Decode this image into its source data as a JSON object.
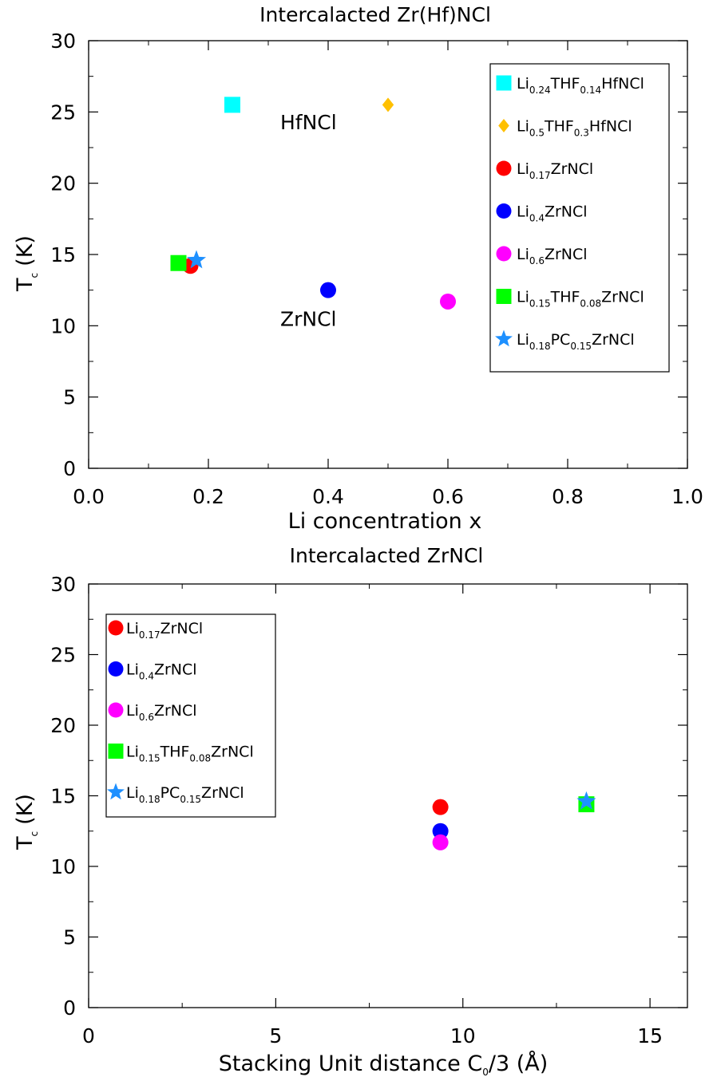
{
  "chart_data": [
    {
      "type": "scatter",
      "title": "Intercalacted Zr(Hf)NCl",
      "xlabel": "Li concentration x",
      "ylabel": {
        "main": "T",
        "sub": "c",
        "unit": "(K)"
      },
      "xlim": [
        0,
        1.0
      ],
      "ylim": [
        0,
        30
      ],
      "xticks": [
        0,
        0.2,
        0.4,
        0.6,
        0.8,
        1.0
      ],
      "xtick_labels": [
        "0.0",
        "0.2",
        "0.4",
        "0.6",
        "0.8",
        "1.0"
      ],
      "yticks": [
        0,
        5,
        10,
        15,
        20,
        25,
        30
      ],
      "ytick_labels": [
        "0",
        "5",
        "10",
        "15",
        "20",
        "25",
        "30"
      ],
      "grid": false,
      "legend_position": "top-right",
      "annotations": [
        {
          "text": "HfNCl",
          "x": 0.32,
          "y": 23.8
        },
        {
          "text": "ZrNCl",
          "x": 0.32,
          "y": 10.0
        }
      ],
      "series": [
        {
          "name": "Li0.24THF0.14HfNCl",
          "label_parts": [
            [
              "Li",
              ""
            ],
            [
              "0.24",
              "sub"
            ],
            [
              "THF",
              ""
            ],
            [
              "0.14",
              "sub"
            ],
            [
              "HfNCl",
              ""
            ]
          ],
          "marker": "square",
          "color": "#00ffff",
          "x": [
            0.24
          ],
          "y": [
            25.5
          ]
        },
        {
          "name": "Li0.5THF0.3HfNCl",
          "label_parts": [
            [
              "Li",
              ""
            ],
            [
              "0.5",
              "sub"
            ],
            [
              "THF",
              ""
            ],
            [
              "0.3",
              "sub"
            ],
            [
              "HfNCl",
              ""
            ]
          ],
          "marker": "diamond",
          "color": "#ffc000",
          "x": [
            0.5
          ],
          "y": [
            25.5
          ]
        },
        {
          "name": "Li0.17ZrNCl",
          "label_parts": [
            [
              "Li",
              ""
            ],
            [
              "0.17",
              "sub"
            ],
            [
              "ZrNCl",
              ""
            ]
          ],
          "marker": "circle",
          "color": "#ff0000",
          "x": [
            0.17
          ],
          "y": [
            14.2
          ]
        },
        {
          "name": "Li0.4ZrNCl",
          "label_parts": [
            [
              "Li",
              ""
            ],
            [
              "0.4",
              "sub"
            ],
            [
              "ZrNCl",
              ""
            ]
          ],
          "marker": "circle",
          "color": "#0000ff",
          "x": [
            0.4
          ],
          "y": [
            12.5
          ]
        },
        {
          "name": "Li0.6ZrNCl",
          "label_parts": [
            [
              "Li",
              ""
            ],
            [
              "0.6",
              "sub"
            ],
            [
              "ZrNCl",
              ""
            ]
          ],
          "marker": "circle",
          "color": "#ff00ff",
          "x": [
            0.6
          ],
          "y": [
            11.7
          ]
        },
        {
          "name": "Li0.15THF0.08ZrNCl",
          "label_parts": [
            [
              "Li",
              ""
            ],
            [
              "0.15",
              "sub"
            ],
            [
              "THF",
              ""
            ],
            [
              "0.08",
              "sub"
            ],
            [
              "ZrNCl",
              ""
            ]
          ],
          "marker": "square",
          "color": "#00ff00",
          "x": [
            0.15
          ],
          "y": [
            14.4
          ]
        },
        {
          "name": "Li0.18PC0.15ZrNCl",
          "label_parts": [
            [
              "Li",
              ""
            ],
            [
              "0.18",
              "sub"
            ],
            [
              "PC",
              ""
            ],
            [
              "0.15",
              "sub"
            ],
            [
              "ZrNCl",
              ""
            ]
          ],
          "marker": "star",
          "color": "#1e90ff",
          "x": [
            0.18
          ],
          "y": [
            14.6
          ]
        }
      ]
    },
    {
      "type": "scatter",
      "title": "Intercalacted ZrNCl",
      "xlabel": "Stacking Unit distance C0/3 (Å)",
      "xlabel_parts": [
        [
          "Stacking Unit distance C",
          ""
        ],
        [
          "0",
          "sub"
        ],
        [
          "/3 (Å)",
          ""
        ]
      ],
      "ylabel": {
        "main": "T",
        "sub": "c",
        "unit": "(K)"
      },
      "xlim": [
        0,
        16
      ],
      "ylim": [
        0,
        30
      ],
      "xticks": [
        0,
        5,
        10,
        15
      ],
      "xtick_labels": [
        "0",
        "5",
        "10",
        "15"
      ],
      "yticks": [
        0,
        5,
        10,
        15,
        20,
        25,
        30
      ],
      "ytick_labels": [
        "0",
        "5",
        "10",
        "15",
        "20",
        "25",
        "30"
      ],
      "grid": false,
      "legend_position": "top-left",
      "annotations": [],
      "series": [
        {
          "name": "Li0.17ZrNCl",
          "label_parts": [
            [
              "Li",
              ""
            ],
            [
              "0.17",
              "sub"
            ],
            [
              "ZrNCl",
              ""
            ]
          ],
          "marker": "circle",
          "color": "#ff0000",
          "x": [
            9.4
          ],
          "y": [
            14.2
          ]
        },
        {
          "name": "Li0.4ZrNCl",
          "label_parts": [
            [
              "Li",
              ""
            ],
            [
              "0.4",
              "sub"
            ],
            [
              "ZrNCl",
              ""
            ]
          ],
          "marker": "circle",
          "color": "#0000ff",
          "x": [
            9.4
          ],
          "y": [
            12.5
          ]
        },
        {
          "name": "Li0.6ZrNCl",
          "label_parts": [
            [
              "Li",
              ""
            ],
            [
              "0.6",
              "sub"
            ],
            [
              "ZrNCl",
              ""
            ]
          ],
          "marker": "circle",
          "color": "#ff00ff",
          "x": [
            9.4
          ],
          "y": [
            11.7
          ]
        },
        {
          "name": "Li0.15THF0.08ZrNCl",
          "label_parts": [
            [
              "Li",
              ""
            ],
            [
              "0.15",
              "sub"
            ],
            [
              "THF",
              ""
            ],
            [
              "0.08",
              "sub"
            ],
            [
              "ZrNCl",
              ""
            ]
          ],
          "marker": "square",
          "color": "#00ff00",
          "x": [
            13.3
          ],
          "y": [
            14.4
          ]
        },
        {
          "name": "Li0.18PC0.15ZrNCl",
          "label_parts": [
            [
              "Li",
              ""
            ],
            [
              "0.18",
              "sub"
            ],
            [
              "PC",
              ""
            ],
            [
              "0.15",
              "sub"
            ],
            [
              "ZrNCl",
              ""
            ]
          ],
          "marker": "star",
          "color": "#1e90ff",
          "x": [
            13.3
          ],
          "y": [
            14.6
          ]
        }
      ]
    }
  ]
}
